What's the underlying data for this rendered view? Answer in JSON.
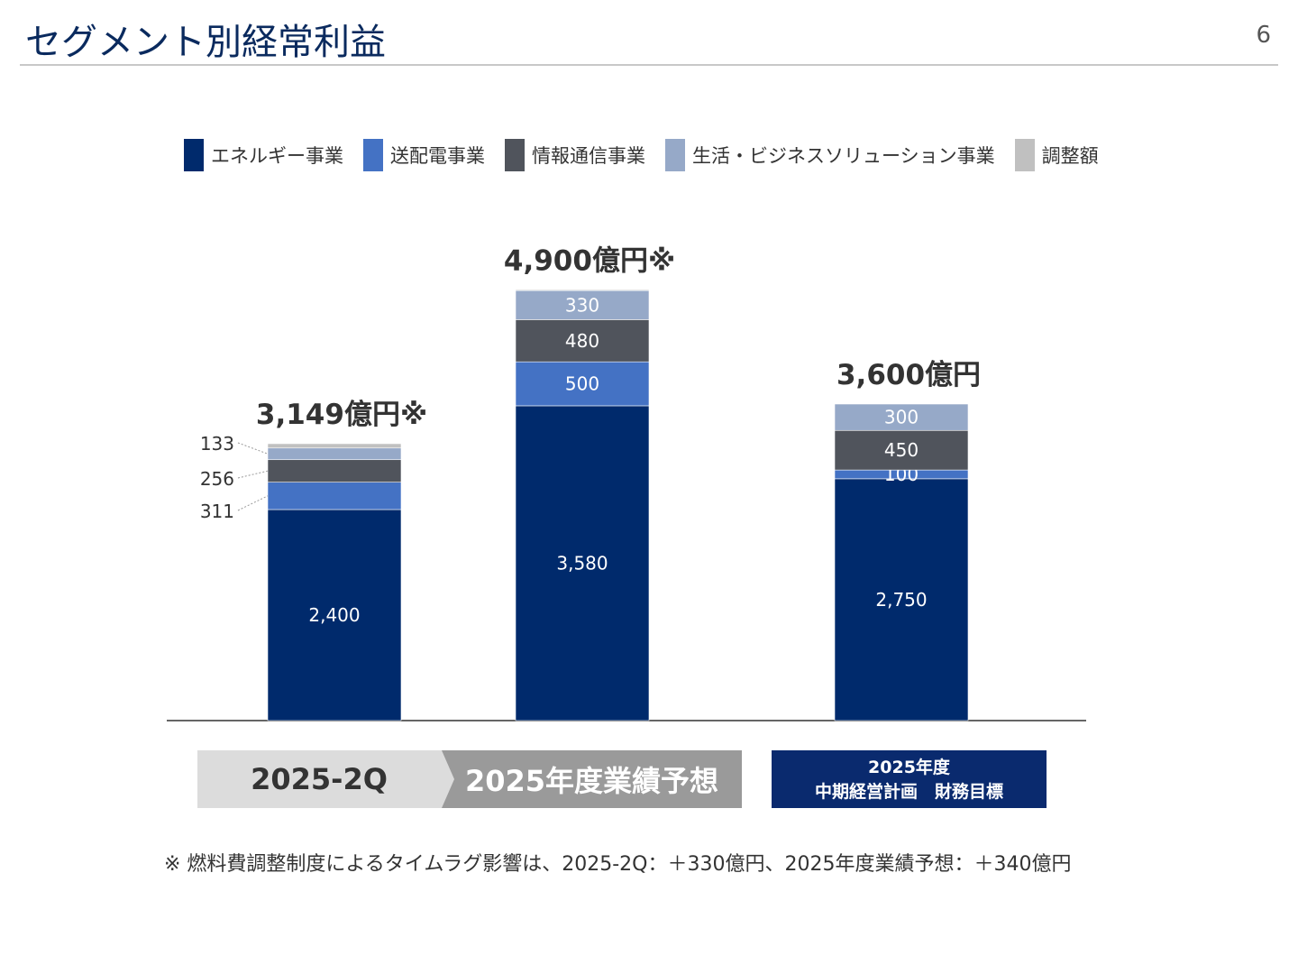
{
  "header": {
    "title": "セグメント別経常利益",
    "page": "6"
  },
  "colors": {
    "energy": "#002a6c",
    "transmission": "#4472c4",
    "ict": "#50545c",
    "life": "#96a9c8",
    "adjust": "#c0c0c0"
  },
  "chart_data": {
    "type": "bar",
    "stacked": true,
    "categories": [
      "2025-2Q",
      "2025年度業績予想",
      "2025年度 中期経営計画 財務目標"
    ],
    "series": [
      {
        "name": "エネルギー事業",
        "values": [
          2400,
          3580,
          2750
        ],
        "labels": [
          "2,400",
          "3,580",
          "2,750"
        ]
      },
      {
        "name": "送配電事業",
        "values": [
          311,
          500,
          100
        ],
        "labels": [
          "311",
          "500",
          "100"
        ]
      },
      {
        "name": "情報通信事業",
        "values": [
          256,
          480,
          450
        ],
        "labels": [
          "256",
          "480",
          "450"
        ]
      },
      {
        "name": "生活・ビジネスソリューション事業",
        "values": [
          133,
          330,
          300
        ],
        "labels": [
          "133",
          "330",
          "300"
        ]
      },
      {
        "name": "調整額",
        "values": [
          49,
          10,
          0
        ],
        "labels": [
          "",
          "",
          ""
        ]
      }
    ],
    "totals": [
      "3,149億円※",
      "4,900億円※",
      "3,600億円"
    ],
    "grid": false,
    "legend": "top"
  },
  "categories": {
    "c1": "2025-2Q",
    "c2": "2025年度業績予想",
    "c3a": "2025年度",
    "c3b": "中期経営計画　財務目標"
  },
  "note": "※ 燃料費調整制度によるタイムラグ影響は、2025-2Q：＋330億円、2025年度業績予想：＋340億円"
}
